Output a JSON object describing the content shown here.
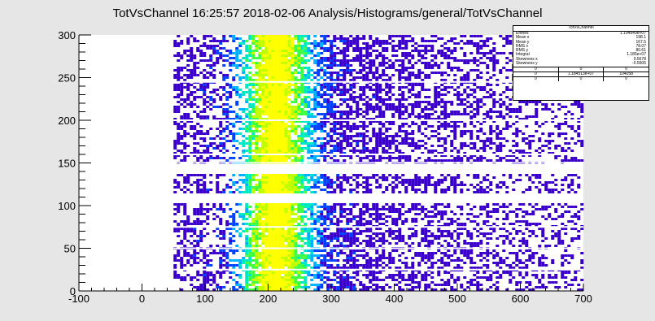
{
  "title": "TotVsChannel  16:25:57  2018-02-06  Analysis/Histograms/general/TotVsChannel",
  "stats_box": {
    "name": "TotVsChannel",
    "rows": [
      {
        "label": "Entries",
        "value": "1.194949e+07"
      },
      {
        "label": "Mean x",
        "value": "198.1"
      },
      {
        "label": "Mean y",
        "value": "167.5"
      },
      {
        "label": "RMS x",
        "value": "78.07"
      },
      {
        "label": "RMS y",
        "value": "80.61"
      },
      {
        "label": "Integral",
        "value": "1.185e+07"
      },
      {
        "label": "Skewness x",
        "value": "0.5678"
      },
      {
        "label": "Skewness y",
        "value": "-0.5505"
      }
    ],
    "grid": [
      [
        "0",
        "0",
        "0"
      ],
      [
        "0",
        "1.184513e+07",
        "104058"
      ],
      [
        "0",
        "0",
        "0"
      ]
    ]
  },
  "chart_data": {
    "type": "heatmap",
    "title": "TotVsChannel  16:25:57  2018-02-06  Analysis/Histograms/general/TotVsChannel",
    "xlabel": "",
    "ylabel": "",
    "xlim": [
      -100,
      700
    ],
    "ylim": [
      0,
      300
    ],
    "x_ticks": [
      -100,
      0,
      100,
      200,
      300,
      400,
      500,
      600,
      700
    ],
    "y_ticks": [
      0,
      50,
      100,
      150,
      200,
      250,
      300
    ],
    "grid": false,
    "palette": [
      "#ffffff",
      "#3a00c8",
      "#0040ff",
      "#00b0ff",
      "#00e8c0",
      "#40ff40",
      "#c0ff00",
      "#ffff00"
    ],
    "x_onset": 50,
    "peak_x": 210,
    "peak_width_x": 40,
    "empty_y_bands": [
      [
        104,
        113
      ],
      [
        136,
        149
      ]
    ],
    "gap_y_lines": [
      25,
      50,
      75,
      150,
      160,
      200,
      245
    ],
    "colors": {
      "background": "#e6e6e6",
      "frame": "#ffffff"
    }
  }
}
